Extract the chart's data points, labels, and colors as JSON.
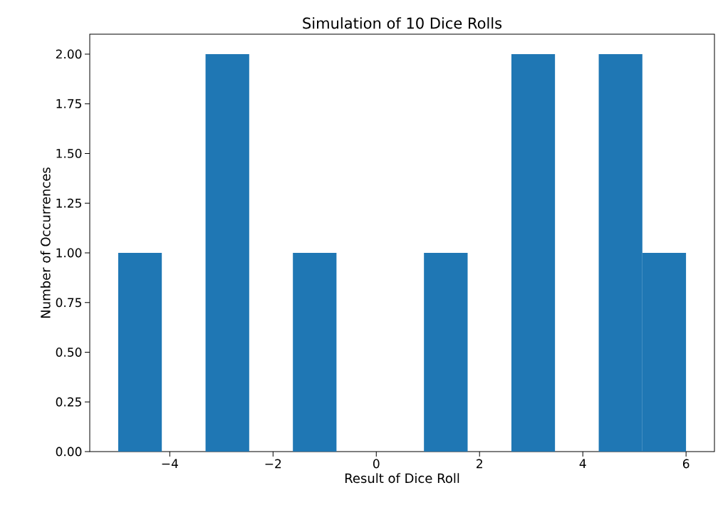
{
  "chart_data": {
    "type": "histogram",
    "title": "Simulation of 10 Dice Rolls",
    "xlabel": "Result of Dice Roll",
    "ylabel": "Number of Occurrences",
    "bins": [
      -5,
      -4.1538,
      -3.3077,
      -2.4615,
      -1.6154,
      -0.7692,
      0.0769,
      0.9231,
      1.7692,
      2.6154,
      3.4615,
      4.3077,
      5.1538,
      6
    ],
    "values": [
      1,
      0,
      2,
      0,
      1,
      0,
      0,
      1,
      0,
      2,
      0,
      2,
      1
    ],
    "color": "#1f77b4",
    "xlim": [
      -5.55,
      6.55
    ],
    "ylim": [
      0,
      2.1
    ],
    "xticks": [
      {
        "value": -4,
        "label": "−4"
      },
      {
        "value": -2,
        "label": "−2"
      },
      0,
      2,
      4,
      6
    ],
    "yticks": [
      {
        "value": 0,
        "label": "0.00"
      },
      {
        "value": 0.25,
        "label": "0.25"
      },
      {
        "value": 0.5,
        "label": "0.50"
      },
      {
        "value": 0.75,
        "label": "0.75"
      },
      {
        "value": 1,
        "label": "1.00"
      },
      {
        "value": 1.25,
        "label": "1.25"
      },
      {
        "value": 1.5,
        "label": "1.50"
      },
      {
        "value": 1.75,
        "label": "1.75"
      },
      {
        "value": 2,
        "label": "2.00"
      }
    ],
    "grid": false
  }
}
